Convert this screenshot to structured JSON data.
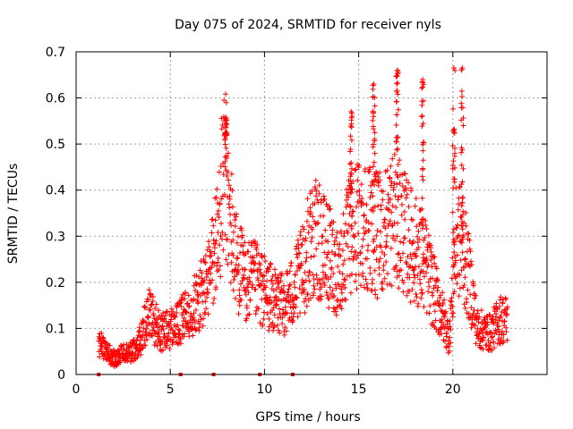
{
  "chart_data": {
    "type": "scatter",
    "title": "Day 075 of 2024, SRMTID for receiver nyls",
    "xlabel": "GPS time / hours",
    "ylabel": "SRMTID / TECUs",
    "xlim": [
      0,
      25
    ],
    "ylim": [
      0,
      0.7
    ],
    "x_ticks": [
      0,
      5,
      10,
      15,
      20
    ],
    "x_tick_labels": [
      "0",
      "5",
      "10",
      "15",
      "20"
    ],
    "y_ticks": [
      0,
      0.1,
      0.2,
      0.3,
      0.4,
      0.5,
      0.6,
      0.7
    ],
    "y_tick_labels": [
      "0",
      "0.1",
      "0.2",
      "0.3",
      "0.4",
      "0.5",
      "0.6",
      "0.7"
    ],
    "grid": true,
    "marker": "+",
    "color": "#ff0000",
    "trend": [
      [
        1.2,
        0.07
      ],
      [
        1.6,
        0.05
      ],
      [
        2.0,
        0.035
      ],
      [
        2.5,
        0.045
      ],
      [
        3.0,
        0.05
      ],
      [
        3.5,
        0.08
      ],
      [
        3.8,
        0.14
      ],
      [
        4.1,
        0.12
      ],
      [
        4.5,
        0.09
      ],
      [
        5.0,
        0.1
      ],
      [
        5.5,
        0.11
      ],
      [
        6.0,
        0.14
      ],
      [
        6.5,
        0.16
      ],
      [
        7.0,
        0.2
      ],
      [
        7.5,
        0.3
      ],
      [
        7.9,
        0.45
      ],
      [
        8.1,
        0.35
      ],
      [
        8.5,
        0.25
      ],
      [
        9.0,
        0.2
      ],
      [
        9.5,
        0.2
      ],
      [
        10.0,
        0.18
      ],
      [
        10.5,
        0.16
      ],
      [
        11.0,
        0.15
      ],
      [
        11.5,
        0.18
      ],
      [
        12.0,
        0.22
      ],
      [
        12.5,
        0.3
      ],
      [
        13.0,
        0.28
      ],
      [
        13.5,
        0.25
      ],
      [
        14.0,
        0.22
      ],
      [
        14.5,
        0.3
      ],
      [
        15.0,
        0.33
      ],
      [
        15.5,
        0.33
      ],
      [
        16.0,
        0.3
      ],
      [
        16.5,
        0.32
      ],
      [
        17.0,
        0.35
      ],
      [
        17.5,
        0.3
      ],
      [
        18.0,
        0.27
      ],
      [
        18.5,
        0.24
      ],
      [
        19.0,
        0.18
      ],
      [
        19.5,
        0.12
      ],
      [
        19.8,
        0.08
      ],
      [
        20.2,
        0.3
      ],
      [
        20.5,
        0.28
      ],
      [
        21.0,
        0.18
      ],
      [
        21.3,
        0.1
      ],
      [
        22.0,
        0.09
      ],
      [
        22.5,
        0.12
      ],
      [
        22.9,
        0.12
      ]
    ],
    "peaks": [
      {
        "x": 7.95,
        "y": 0.555
      },
      {
        "x": 14.6,
        "y": 0.57
      },
      {
        "x": 15.8,
        "y": 0.63
      },
      {
        "x": 17.05,
        "y": 0.66
      },
      {
        "x": 18.4,
        "y": 0.64
      },
      {
        "x": 20.05,
        "y": 0.665
      },
      {
        "x": 20.5,
        "y": 0.665
      }
    ],
    "zero_markers_x": [
      1.2,
      5.55,
      7.3,
      9.75,
      11.5
    ]
  }
}
